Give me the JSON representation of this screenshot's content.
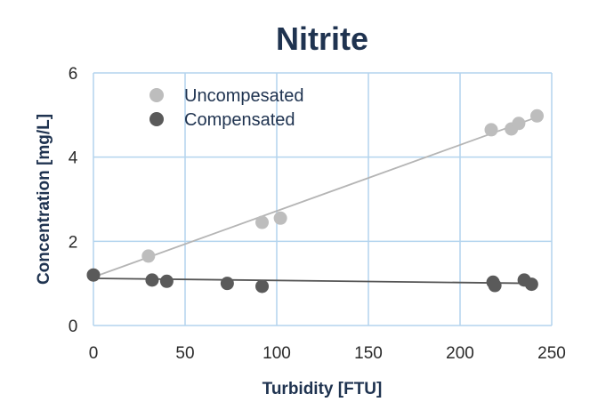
{
  "chart_data": {
    "type": "scatter",
    "title": "Nitrite",
    "xlabel": "Turbidity [FTU]",
    "ylabel": "Concentration [mg/L]",
    "xlim": [
      0,
      250
    ],
    "ylim": [
      0,
      6
    ],
    "xticks": [
      "0",
      "50",
      "100",
      "150",
      "200",
      "250"
    ],
    "yticks": [
      "0",
      "2",
      "4",
      "6"
    ],
    "grid": true,
    "legend_position": "top-left",
    "series": [
      {
        "name": "Uncompesated",
        "color": "#bdbdbd",
        "line_color": "#b5b5b5",
        "points": [
          [
            0,
            1.2
          ],
          [
            30,
            1.65
          ],
          [
            92,
            2.45
          ],
          [
            102,
            2.55
          ],
          [
            217,
            4.65
          ],
          [
            228,
            4.67
          ],
          [
            232,
            4.8
          ],
          [
            242,
            4.98
          ]
        ],
        "trendline": [
          [
            0,
            1.15
          ],
          [
            242,
            4.95
          ]
        ]
      },
      {
        "name": "Compensated",
        "color": "#5a5a5a",
        "line_color": "#555555",
        "points": [
          [
            0,
            1.2
          ],
          [
            32,
            1.08
          ],
          [
            40,
            1.05
          ],
          [
            73,
            1.0
          ],
          [
            92,
            0.93
          ],
          [
            218,
            1.03
          ],
          [
            219,
            0.95
          ],
          [
            235,
            1.08
          ],
          [
            239,
            0.98
          ]
        ],
        "trendline": [
          [
            0,
            1.12
          ],
          [
            242,
            1.0
          ]
        ]
      }
    ],
    "colors": {
      "grid": "#b3d4ee",
      "title": "#1f3350"
    }
  }
}
